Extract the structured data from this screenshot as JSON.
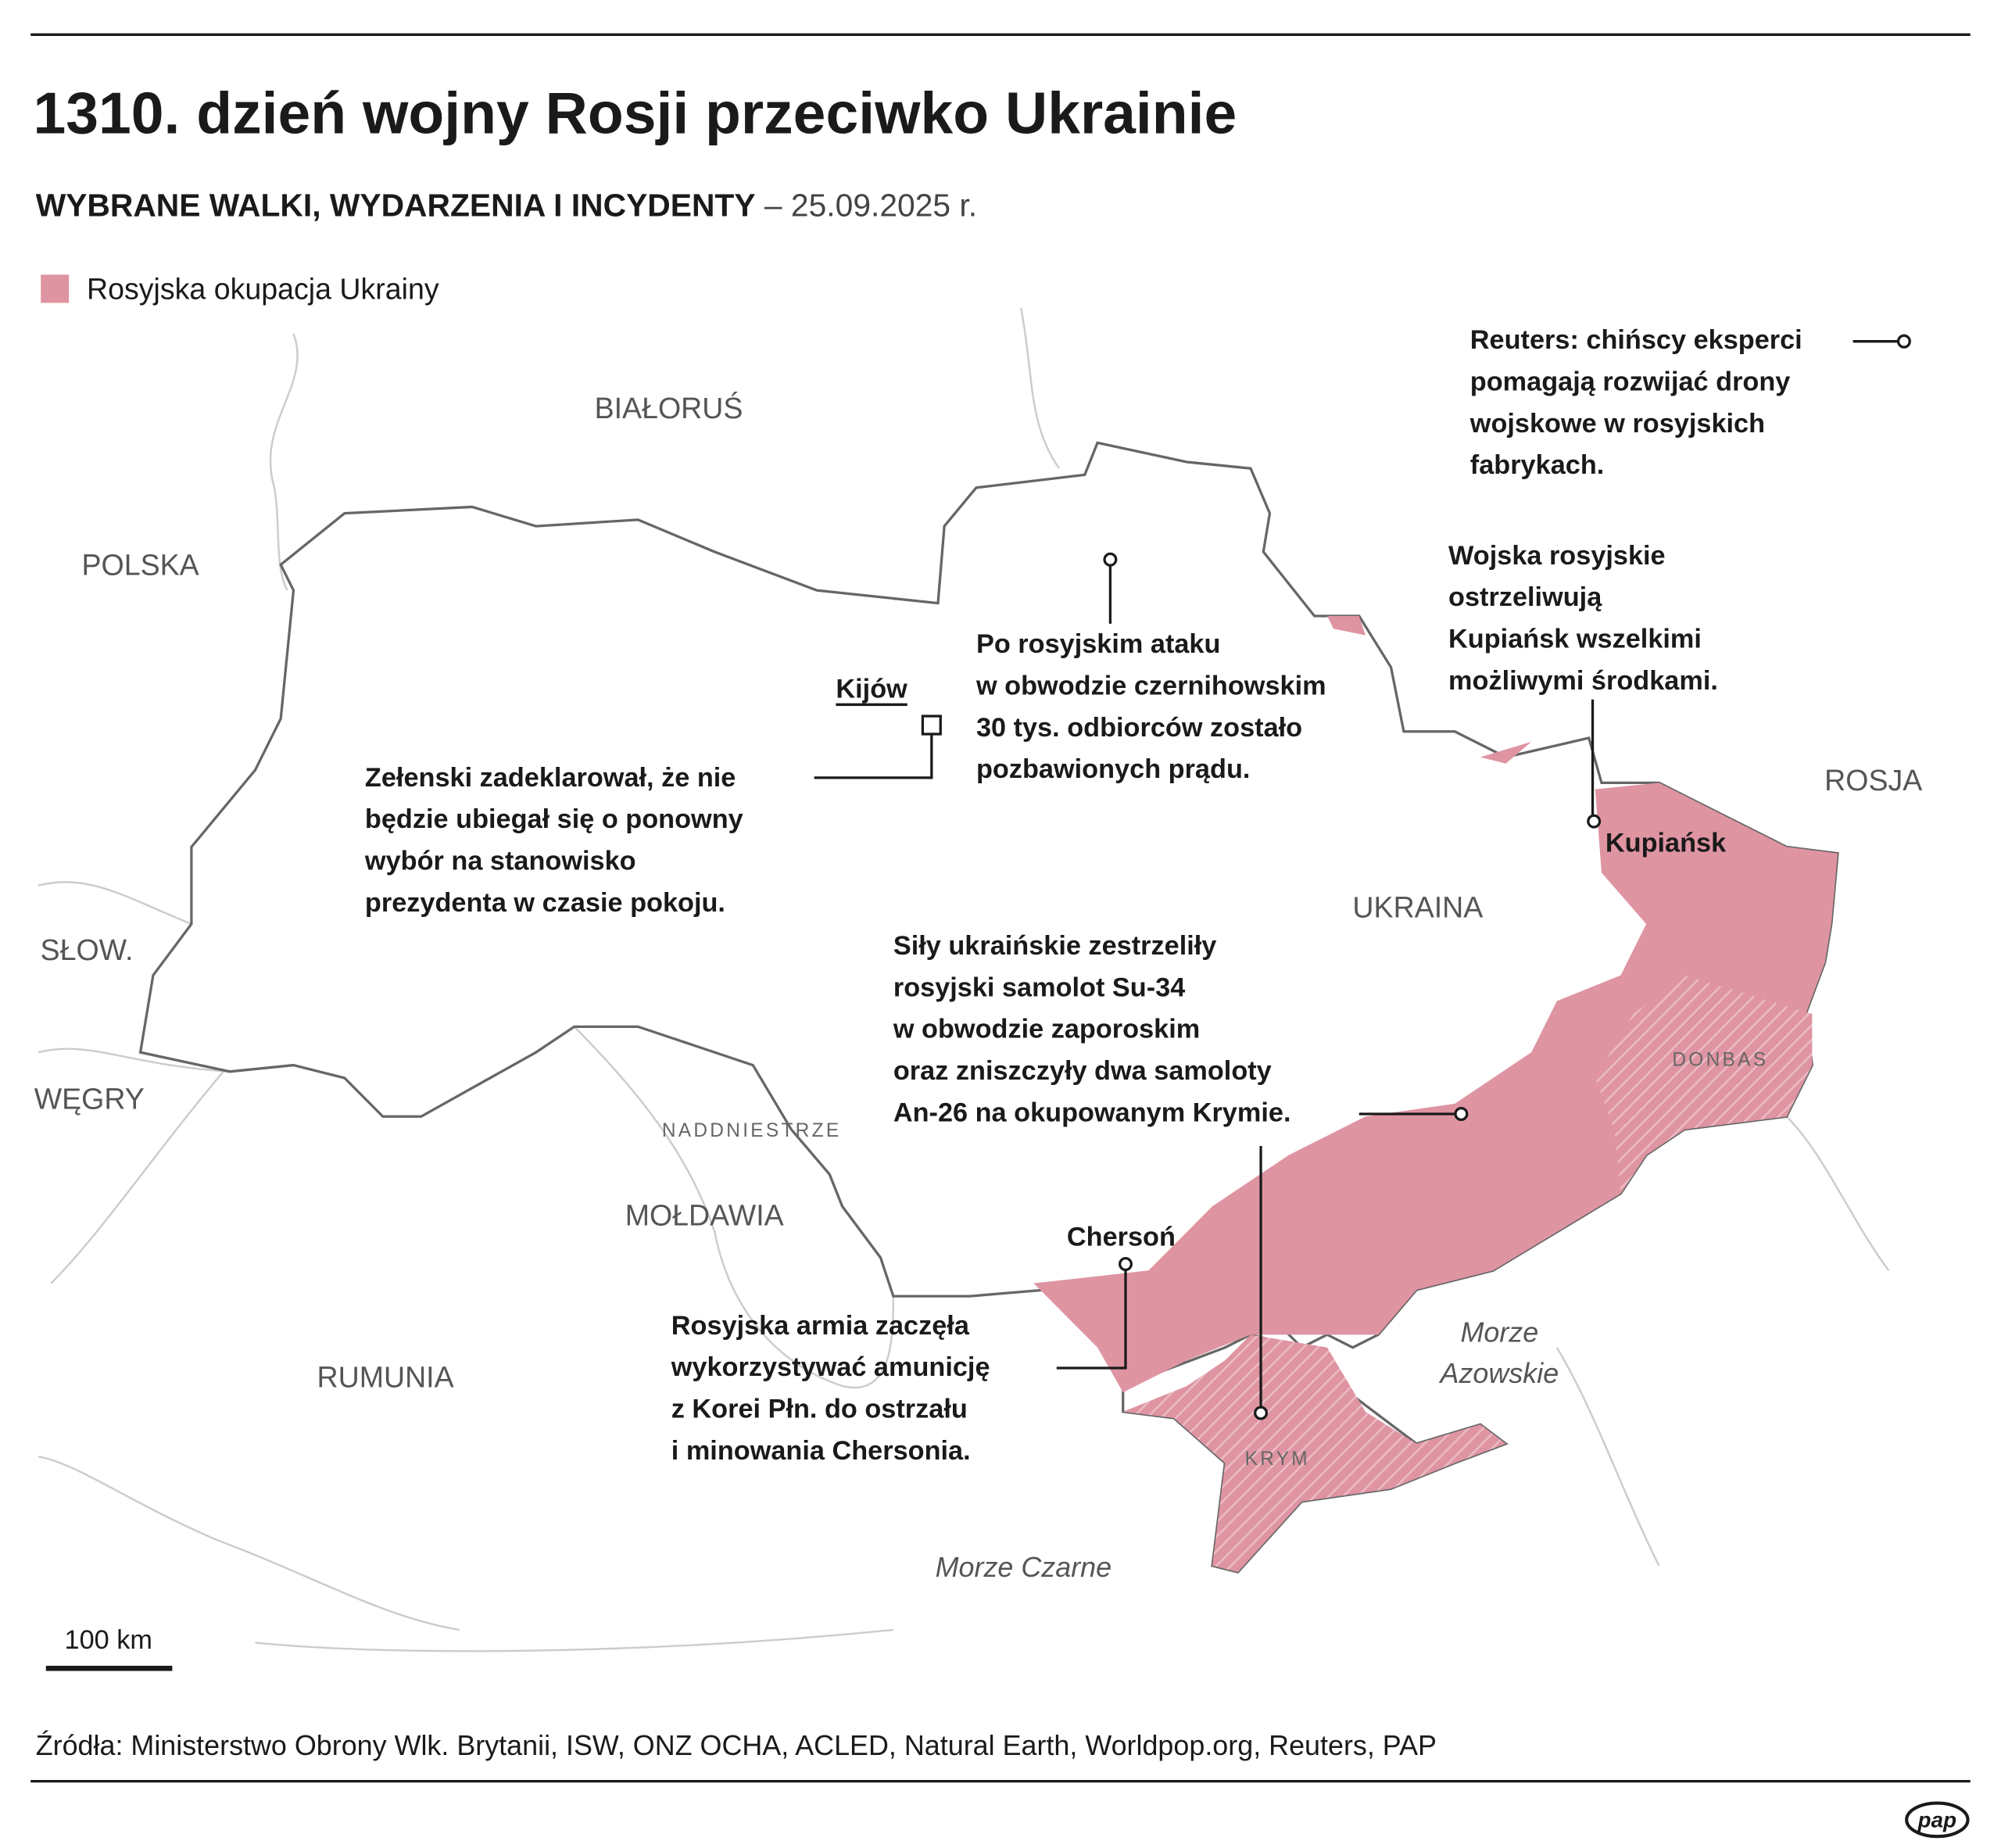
{
  "header": {
    "title": "1310. dzień wojny Rosji przeciwko Ukrainie",
    "subtitle_bold": "WYBRANE WALKI, WYDARZENIA I INCYDENTY",
    "subtitle_date": "– 25.09.2025 r."
  },
  "legend": {
    "label": "Rosyjska okupacja Ukrainy",
    "color": "#df94a2"
  },
  "countries": [
    "BIAŁORUŚ",
    "POLSKA",
    "SŁOW.",
    "WĘGRY",
    "NADDNIESTRZE",
    "MOŁDAWIA",
    "RUMUNIA",
    "UKRAINA",
    "ROSJA"
  ],
  "regions": [
    "DONBAS",
    "KRYM"
  ],
  "seas": {
    "azov": [
      "Morze",
      "Azowskie"
    ],
    "black": "Morze Czarne"
  },
  "cities": {
    "kyiv": "Kijów",
    "kupiansk": "Kupiańsk",
    "kherson": "Chersoń"
  },
  "annotations": [
    {
      "lines": [
        "Reuters: chińscy eksperci",
        "pomagają rozwijać drony",
        "wojskowe w rosyjskich",
        "fabrykach."
      ]
    },
    {
      "lines": [
        "Wojska rosyjskie",
        "ostrzeliwują",
        "Kupiańsk wszelkimi",
        "możliwymi środkami."
      ]
    },
    {
      "lines": [
        "Po rosyjskim ataku",
        "w obwodzie czernihowskim",
        "30 tys. odbiorców zostało",
        "pozbawionych prądu."
      ]
    },
    {
      "lines": [
        "Zełenski zadeklarował, że nie",
        "będzie ubiegał się o ponowny",
        "wybór na stanowisko",
        "prezydenta w czasie pokoju."
      ]
    },
    {
      "lines": [
        "Siły ukraińskie zestrzeliły",
        "rosyjski samolot Su-34",
        "w obwodzie zaporoskim",
        "oraz zniszczyły dwa samoloty",
        "An-26 na okupowanym Krymie."
      ]
    },
    {
      "lines": [
        "Rosyjska armia zaczęła",
        "wykorzystywać amunicję",
        "z Korei Płn. do ostrzału",
        "i minowania Chersonia."
      ]
    }
  ],
  "scale": "100 km",
  "sources": "Źródła: Ministerstwo Obrony Wlk. Brytanii, ISW, ONZ OCHA, ACLED, Natural Earth, Worldpop.org, Reuters, PAP",
  "logo": "pap"
}
